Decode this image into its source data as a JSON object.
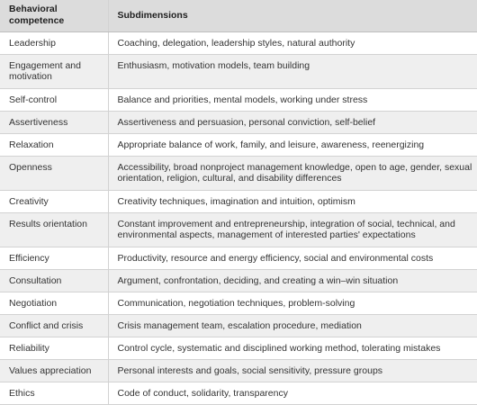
{
  "header": {
    "col1": "Behavioral competence",
    "col2": "Subdimensions"
  },
  "rows": [
    {
      "competence": "Leadership",
      "subdimensions": "Coaching, delegation, leadership styles, natural authority"
    },
    {
      "competence": "Engagement and motivation",
      "subdimensions": "Enthusiasm, motivation models, team building"
    },
    {
      "competence": "Self-control",
      "subdimensions": "Balance and priorities, mental models, working under stress"
    },
    {
      "competence": "Assertiveness",
      "subdimensions": "Assertiveness and persuasion, personal conviction, self-belief"
    },
    {
      "competence": "Relaxation",
      "subdimensions": "Appropriate balance of work, family, and leisure, awareness, reenergizing"
    },
    {
      "competence": "Openness",
      "subdimensions": "Accessibility, broad nonproject management knowledge, open to age, gender, sexual orientation, religion, cultural, and disability differences"
    },
    {
      "competence": "Creativity",
      "subdimensions": "Creativity techniques, imagination and intuition, optimism"
    },
    {
      "competence": "Results orientation",
      "subdimensions": "Constant improvement and entrepreneurship, integration of social, technical, and environmental aspects, management of interested parties' expectations"
    },
    {
      "competence": "Efficiency",
      "subdimensions": "Productivity, resource and energy efficiency, social and environmental costs"
    },
    {
      "competence": "Consultation",
      "subdimensions": "Argument, confrontation, deciding, and creating a win–win situation"
    },
    {
      "competence": "Negotiation",
      "subdimensions": "Communication, negotiation techniques, problem-solving"
    },
    {
      "competence": "Conflict and crisis",
      "subdimensions": "Crisis management team, escalation procedure, mediation"
    },
    {
      "competence": "Reliability",
      "subdimensions": "Control cycle, systematic and disciplined working method, tolerating mistakes"
    },
    {
      "competence": "Values appreciation",
      "subdimensions": "Personal interests and goals, social sensitivity, pressure groups"
    },
    {
      "competence": "Ethics",
      "subdimensions": "Code of conduct, solidarity, transparency"
    }
  ]
}
